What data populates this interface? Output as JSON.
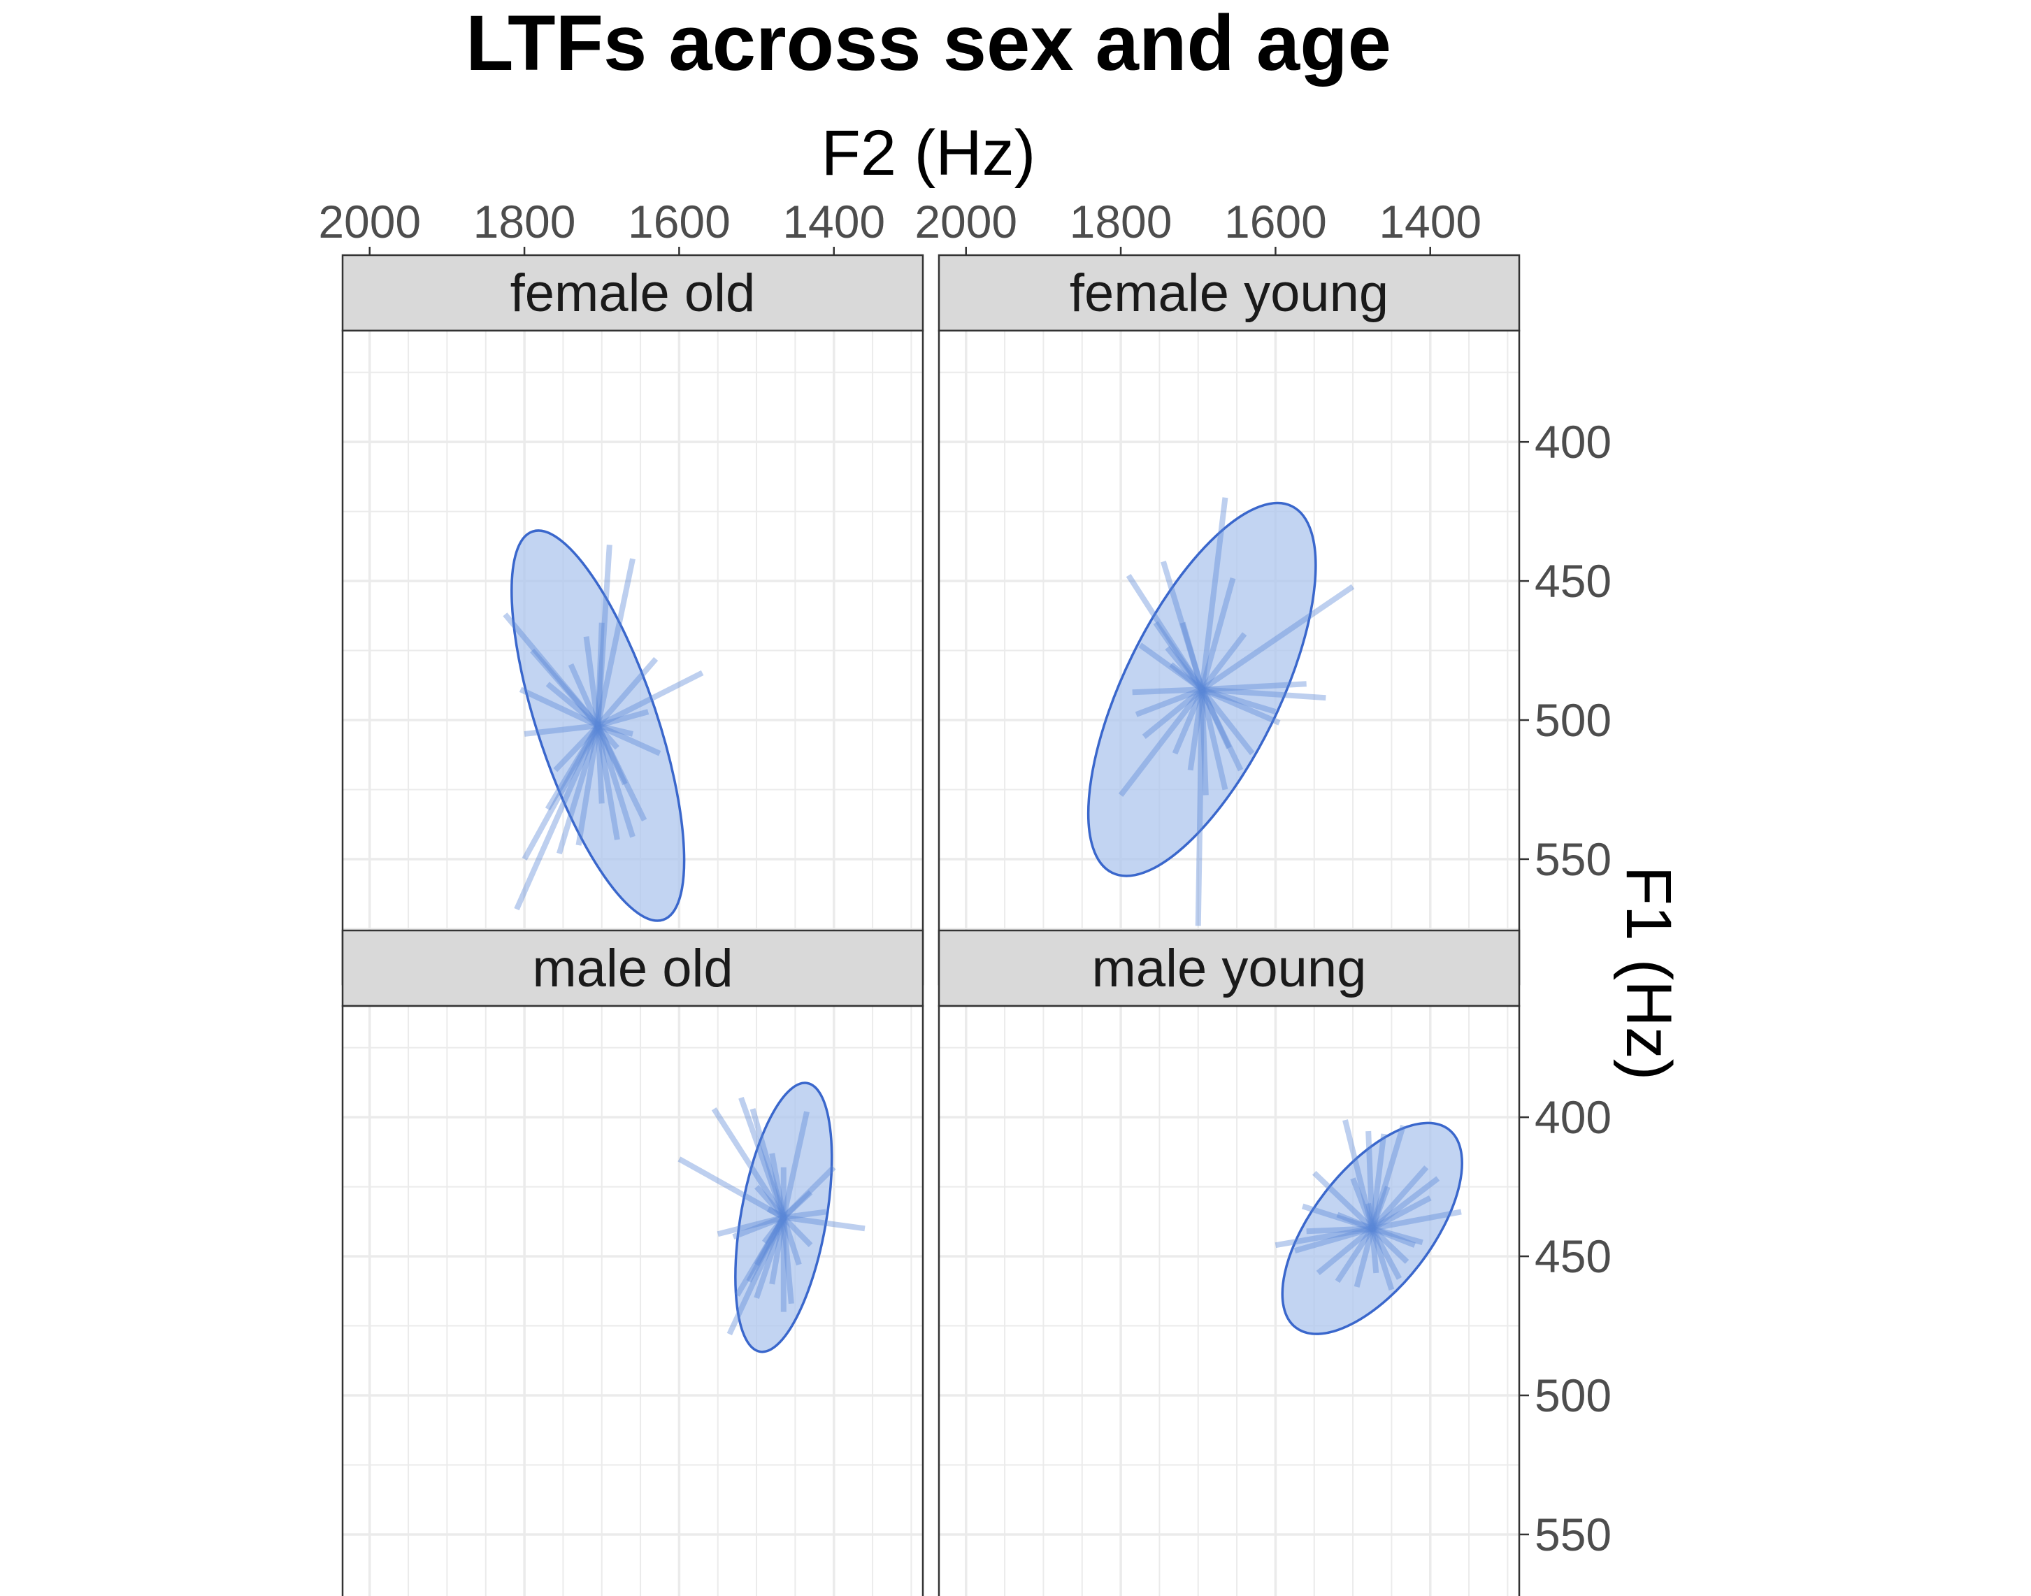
{
  "chart_data": {
    "type": "scatter",
    "title": "LTFs across sex and age",
    "xlabel": "F2 (Hz)",
    "ylabel": "F1 (Hz)",
    "x_axis": {
      "position": "top",
      "reversed": true,
      "range": [
        2035,
        1285
      ],
      "ticks": [
        2000,
        1800,
        1600,
        1400
      ]
    },
    "y_axis": {
      "position": "right",
      "reversed": true,
      "range": [
        360,
        595
      ],
      "ticks": [
        400,
        450,
        500,
        550
      ]
    },
    "grid": true,
    "colors": {
      "ellipse_fill": "#aec5ee",
      "ellipse_stroke": "#3a67cc",
      "spoke": "#5b86d6",
      "strip_bg": "#d9d9d9",
      "panel_border": "#333333",
      "grid": "#ebebeb"
    },
    "panels": [
      {
        "label": "female old",
        "center": [
          1705,
          502
        ],
        "ellipse": {
          "rx": 293,
          "ry": 85,
          "angle_deg": 71.4
        },
        "spoke_ends": [
          [
            1690,
            437
          ],
          [
            1660,
            442
          ],
          [
            1630,
            478
          ],
          [
            1570,
            483
          ],
          [
            1640,
            497
          ],
          [
            1625,
            512
          ],
          [
            1660,
            505
          ],
          [
            1680,
            510
          ],
          [
            1670,
            523
          ],
          [
            1645,
            536
          ],
          [
            1660,
            542
          ],
          [
            1680,
            543
          ],
          [
            1700,
            530
          ],
          [
            1730,
            545
          ],
          [
            1755,
            548
          ],
          [
            1800,
            550
          ],
          [
            1810,
            568
          ],
          [
            1770,
            532
          ],
          [
            1760,
            518
          ],
          [
            1800,
            505
          ],
          [
            1805,
            489
          ],
          [
            1770,
            487
          ],
          [
            1825,
            462
          ],
          [
            1790,
            475
          ],
          [
            1740,
            480
          ],
          [
            1720,
            470
          ],
          [
            1700,
            465
          ]
        ]
      },
      {
        "label": "female young",
        "center": [
          1695,
          489
        ],
        "ellipse": {
          "rx": 292,
          "ry": 111,
          "angle_deg": 116.1
        },
        "spoke_ends": [
          [
            1665,
            420
          ],
          [
            1655,
            449
          ],
          [
            1745,
            443
          ],
          [
            1790,
            448
          ],
          [
            1640,
            469
          ],
          [
            1500,
            452
          ],
          [
            1560,
            487
          ],
          [
            1600,
            497
          ],
          [
            1595,
            501
          ],
          [
            1535,
            492
          ],
          [
            1630,
            512
          ],
          [
            1660,
            510
          ],
          [
            1645,
            518
          ],
          [
            1665,
            525
          ],
          [
            1690,
            527
          ],
          [
            1700,
            574
          ],
          [
            1710,
            518
          ],
          [
            1730,
            512
          ],
          [
            1770,
            506
          ],
          [
            1800,
            527
          ],
          [
            1780,
            498
          ],
          [
            1785,
            490
          ],
          [
            1735,
            480
          ],
          [
            1740,
            474
          ],
          [
            1775,
            473
          ],
          [
            1755,
            465
          ],
          [
            1720,
            465
          ]
        ]
      },
      {
        "label": "male old",
        "center": [
          1465,
          436
        ],
        "ellipse": {
          "rx": 195,
          "ry": 61,
          "angle_deg": 100.0
        },
        "spoke_ends": [
          [
            1480,
            413
          ],
          [
            1505,
            397
          ],
          [
            1520,
            393
          ],
          [
            1555,
            397
          ],
          [
            1435,
            398
          ],
          [
            1465,
            418
          ],
          [
            1430,
            427
          ],
          [
            1400,
            418
          ],
          [
            1410,
            434
          ],
          [
            1430,
            446
          ],
          [
            1445,
            453
          ],
          [
            1455,
            467
          ],
          [
            1465,
            470
          ],
          [
            1360,
            440
          ],
          [
            1480,
            460
          ],
          [
            1500,
            465
          ],
          [
            1510,
            459
          ],
          [
            1525,
            464
          ],
          [
            1535,
            478
          ],
          [
            1500,
            453
          ],
          [
            1490,
            445
          ],
          [
            1550,
            442
          ],
          [
            1600,
            415
          ],
          [
            1500,
            425
          ],
          [
            1530,
            443
          ],
          [
            1485,
            433
          ]
        ]
      },
      {
        "label": "male young",
        "center": [
          1475,
          440
        ],
        "ellipse": {
          "rx": 179,
          "ry": 85,
          "angle_deg": 127.7
        },
        "spoke_ends": [
          [
            1510,
            401
          ],
          [
            1480,
            405
          ],
          [
            1460,
            406
          ],
          [
            1435,
            403
          ],
          [
            1405,
            418
          ],
          [
            1390,
            422
          ],
          [
            1400,
            429
          ],
          [
            1360,
            434
          ],
          [
            1410,
            445
          ],
          [
            1430,
            452
          ],
          [
            1440,
            458
          ],
          [
            1450,
            462
          ],
          [
            1470,
            456
          ],
          [
            1495,
            461
          ],
          [
            1520,
            459
          ],
          [
            1545,
            456
          ],
          [
            1600,
            446
          ],
          [
            1575,
            448
          ],
          [
            1560,
            441
          ],
          [
            1565,
            432
          ],
          [
            1500,
            422
          ],
          [
            1520,
            435
          ],
          [
            1550,
            420
          ],
          [
            1480,
            431
          ],
          [
            1455,
            425
          ],
          [
            1420,
            446
          ]
        ]
      }
    ]
  }
}
